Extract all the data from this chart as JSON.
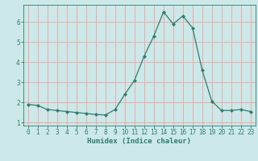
{
  "x": [
    0,
    1,
    2,
    3,
    4,
    5,
    6,
    7,
    8,
    9,
    10,
    11,
    12,
    13,
    14,
    15,
    16,
    17,
    18,
    19,
    20,
    21,
    22,
    23
  ],
  "y": [
    1.9,
    1.85,
    1.65,
    1.6,
    1.55,
    1.5,
    1.45,
    1.4,
    1.38,
    1.65,
    2.4,
    3.1,
    4.3,
    5.3,
    6.5,
    5.9,
    6.3,
    5.7,
    3.6,
    2.05,
    1.6,
    1.6,
    1.65,
    1.55
  ],
  "line_color": "#2e7d6e",
  "marker": "D",
  "marker_size": 2.0,
  "bg_color": "#cce8e8",
  "grid_color": "#f0aaaa",
  "xlabel": "Humidex (Indice chaleur)",
  "ylim": [
    0.85,
    6.85
  ],
  "xlim": [
    -0.5,
    23.5
  ],
  "yticks": [
    1,
    2,
    3,
    4,
    5,
    6
  ],
  "xticks": [
    0,
    1,
    2,
    3,
    4,
    5,
    6,
    7,
    8,
    9,
    10,
    11,
    12,
    13,
    14,
    15,
    16,
    17,
    18,
    19,
    20,
    21,
    22,
    23
  ],
  "label_fontsize": 6.5,
  "tick_fontsize": 5.5,
  "linewidth": 0.9
}
